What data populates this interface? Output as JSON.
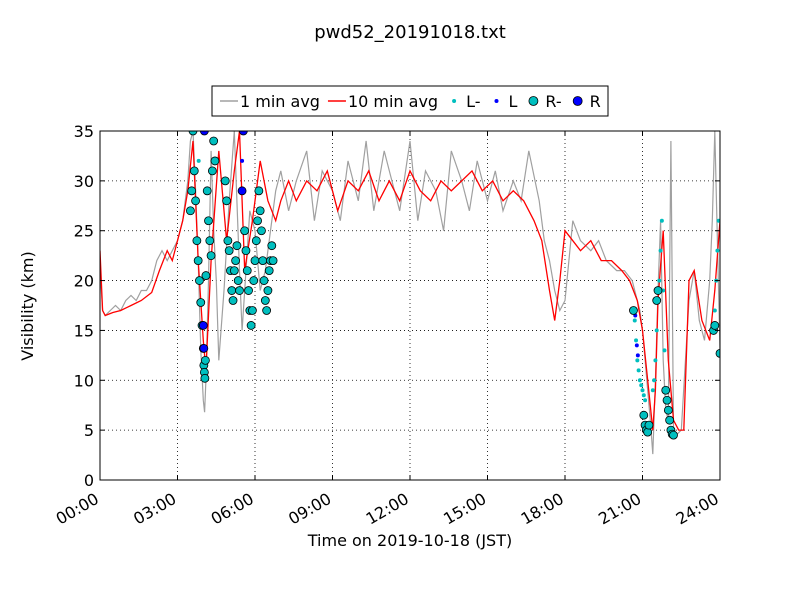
{
  "chart_data": {
    "type": "line",
    "title": "pwd52_20191018.txt",
    "xlabel": "Time on 2019-10-18 (JST)",
    "ylabel": "Visibility (km)",
    "xlim": [
      0,
      24
    ],
    "ylim": [
      0,
      35
    ],
    "x_ticks": [
      0,
      3,
      6,
      9,
      12,
      15,
      18,
      21,
      24
    ],
    "x_tick_labels": [
      "00:00",
      "03:00",
      "06:00",
      "09:00",
      "12:00",
      "15:00",
      "18:00",
      "21:00",
      "24:00"
    ],
    "y_ticks": [
      0,
      5,
      10,
      15,
      20,
      25,
      30,
      35
    ],
    "y_tick_labels": [
      "0",
      "5",
      "10",
      "15",
      "20",
      "25",
      "30",
      "35"
    ],
    "grid": true,
    "legend_placement": "top-center",
    "colors": {
      "one_min": "#a0a0a0",
      "ten_min": "#ff0000",
      "l_minus": "#00bfbf",
      "l": "#0000ff",
      "r_minus": "#00bfbf",
      "r": "#0000ff"
    },
    "series": [
      {
        "name": "1 min avg",
        "kind": "line",
        "x": [
          0,
          0.1,
          0.2,
          0.4,
          0.6,
          0.8,
          1.0,
          1.2,
          1.4,
          1.6,
          1.8,
          2.0,
          2.2,
          2.4,
          2.6,
          2.8,
          3.0,
          3.2,
          3.4,
          3.5,
          3.6,
          3.7,
          3.8,
          3.9,
          4.0,
          4.05,
          4.1,
          4.2,
          4.3,
          4.4,
          4.5,
          4.6,
          4.8,
          5.0,
          5.2,
          5.4,
          5.5,
          5.6,
          5.8,
          6.0,
          6.2,
          6.4,
          6.6,
          6.8,
          7.0,
          7.3,
          7.6,
          8.0,
          8.3,
          8.6,
          9.0,
          9.3,
          9.6,
          10.0,
          10.3,
          10.6,
          11.0,
          11.3,
          11.6,
          12.0,
          12.3,
          12.6,
          13.0,
          13.3,
          13.6,
          14.0,
          14.3,
          14.6,
          15.0,
          15.3,
          15.6,
          16.0,
          16.3,
          16.6,
          17.0,
          17.2,
          17.4,
          17.6,
          17.8,
          18.0,
          18.3,
          18.6,
          19.0,
          19.3,
          19.6,
          20.0,
          20.3,
          20.6,
          20.8,
          20.9,
          21.0,
          21.1,
          21.2,
          21.3,
          21.4,
          21.5,
          21.6,
          21.7,
          21.8,
          21.9,
          22.0,
          22.1,
          22.2,
          22.3,
          22.5,
          22.8,
          23.0,
          23.2,
          23.4,
          23.6,
          23.7,
          23.8,
          23.9,
          24.0
        ],
        "values": [
          21,
          17,
          16.5,
          17,
          17.5,
          17,
          18,
          18.5,
          18,
          19,
          19,
          20,
          22,
          23,
          22,
          23,
          24,
          26,
          30,
          34,
          35,
          29,
          22,
          13,
          8,
          6.8,
          10,
          20,
          33,
          25,
          20,
          12,
          19,
          28,
          35,
          21,
          15,
          19,
          27,
          25,
          19,
          21,
          25,
          29,
          31,
          27,
          30,
          33,
          26,
          31,
          29,
          26,
          32,
          28,
          34,
          27,
          33,
          30,
          27,
          34,
          26,
          31,
          29,
          25,
          33,
          30,
          27,
          32,
          28,
          31,
          27,
          30,
          28,
          33,
          28,
          24,
          22,
          19,
          17,
          18,
          26,
          24,
          23,
          24,
          22,
          21,
          21,
          20,
          18,
          17,
          15,
          12,
          9,
          6,
          2.6,
          10,
          19,
          26,
          12,
          7,
          6,
          34,
          5,
          4.5,
          5,
          18,
          21,
          16,
          14,
          20,
          26,
          35,
          24,
          13
        ]
      },
      {
        "name": "10 min avg",
        "kind": "line",
        "x": [
          0,
          0.1,
          0.2,
          0.5,
          0.8,
          1.2,
          1.6,
          2.0,
          2.3,
          2.6,
          2.8,
          3.0,
          3.2,
          3.4,
          3.6,
          3.8,
          4.0,
          4.1,
          4.3,
          4.6,
          4.9,
          5.2,
          5.4,
          5.6,
          5.9,
          6.2,
          6.5,
          6.8,
          7.0,
          7.3,
          7.6,
          8.0,
          8.4,
          8.8,
          9.2,
          9.6,
          10.0,
          10.4,
          10.8,
          11.2,
          11.6,
          12.0,
          12.4,
          12.8,
          13.2,
          13.6,
          14.0,
          14.4,
          14.8,
          15.2,
          15.6,
          16.0,
          16.4,
          16.8,
          17.1,
          17.4,
          17.6,
          17.8,
          18.0,
          18.3,
          18.6,
          19.0,
          19.4,
          19.8,
          20.2,
          20.5,
          20.8,
          21.0,
          21.2,
          21.4,
          21.5,
          21.6,
          21.8,
          22.0,
          22.2,
          22.4,
          22.6,
          22.8,
          23.0,
          23.3,
          23.6,
          23.8,
          24.0
        ],
        "values": [
          23,
          17,
          16.5,
          16.8,
          17,
          17.5,
          18,
          18.8,
          21,
          23,
          22,
          24,
          26,
          29,
          34,
          22,
          14,
          11,
          22,
          33,
          24,
          31,
          35,
          21,
          26,
          32,
          28,
          26,
          28,
          30,
          28,
          30,
          29,
          31,
          27,
          30,
          29,
          31,
          28,
          30,
          28,
          31,
          29,
          28,
          30,
          29,
          30,
          31,
          29,
          30,
          28,
          29,
          28,
          26,
          24,
          19,
          16,
          20,
          25,
          24,
          23,
          24,
          22,
          22,
          21,
          20,
          18,
          15,
          10,
          5,
          9,
          18,
          25,
          12,
          6,
          5,
          5,
          20,
          21,
          16,
          14,
          19,
          26
        ]
      },
      {
        "name": "L-",
        "kind": "small-dot",
        "x": [
          3.82,
          20.7,
          20.75,
          20.8,
          20.85,
          20.9,
          20.95,
          21.0,
          21.05,
          21.1,
          21.4,
          21.45,
          21.5,
          21.55,
          21.6,
          21.65,
          21.7,
          21.75,
          21.8,
          21.85,
          21.9,
          21.95,
          22.0,
          23.8,
          23.85,
          23.9,
          23.95
        ],
        "values": [
          32,
          16,
          14,
          12,
          11,
          10,
          9.5,
          9,
          8.5,
          8,
          9,
          10,
          12,
          15,
          18,
          20,
          23,
          26,
          19,
          13,
          9,
          7,
          6,
          17,
          20,
          23,
          26
        ]
      },
      {
        "name": "L",
        "kind": "small-dot",
        "x": [
          5.5,
          5.52,
          20.72,
          20.78,
          20.82
        ],
        "values": [
          32,
          35,
          16.5,
          13.5,
          12.5
        ]
      },
      {
        "name": "R-",
        "kind": "large-dot",
        "x": [
          3.5,
          3.55,
          3.6,
          3.65,
          3.7,
          3.75,
          3.8,
          3.85,
          3.9,
          3.95,
          4.0,
          4.02,
          4.04,
          4.06,
          4.08,
          4.1,
          4.15,
          4.2,
          4.25,
          4.3,
          4.35,
          4.4,
          4.45,
          4.85,
          4.9,
          4.95,
          5.0,
          5.05,
          5.1,
          5.15,
          5.2,
          5.25,
          5.3,
          5.35,
          5.4,
          5.6,
          5.65,
          5.7,
          5.75,
          5.8,
          5.85,
          5.9,
          5.95,
          6.0,
          6.05,
          6.1,
          6.15,
          6.2,
          6.25,
          6.3,
          6.35,
          6.4,
          6.45,
          6.5,
          6.55,
          6.6,
          6.65,
          6.7,
          20.65,
          21.05,
          21.1,
          21.15,
          21.2,
          21.25,
          21.55,
          21.6,
          21.9,
          21.95,
          22.0,
          22.05,
          22.1,
          22.15,
          22.2,
          23.75,
          23.8,
          24.0
        ],
        "values": [
          27,
          29,
          35,
          31,
          28,
          24,
          22,
          20,
          17.8,
          15.5,
          13.2,
          11.5,
          10.8,
          10.2,
          12,
          20.5,
          29,
          26,
          24,
          22.5,
          31,
          34,
          32,
          30,
          28,
          24,
          23,
          21,
          19,
          18,
          21,
          22,
          23.5,
          20,
          19,
          25,
          23,
          21,
          19,
          17,
          15.5,
          17,
          20,
          22,
          24,
          26,
          29,
          27,
          25,
          22,
          20,
          18,
          17,
          19,
          21,
          22,
          23.5,
          22,
          17,
          6.5,
          5.5,
          5,
          4.8,
          5.5,
          18,
          19,
          9,
          8,
          7,
          6,
          5,
          4.6,
          4.5,
          15,
          15.5,
          12.7
        ]
      },
      {
        "name": "R",
        "kind": "large-dot",
        "x": [
          4.0,
          4.02,
          4.04,
          5.5,
          5.55
        ],
        "values": [
          15.5,
          13.2,
          35,
          29,
          35
        ]
      }
    ]
  }
}
